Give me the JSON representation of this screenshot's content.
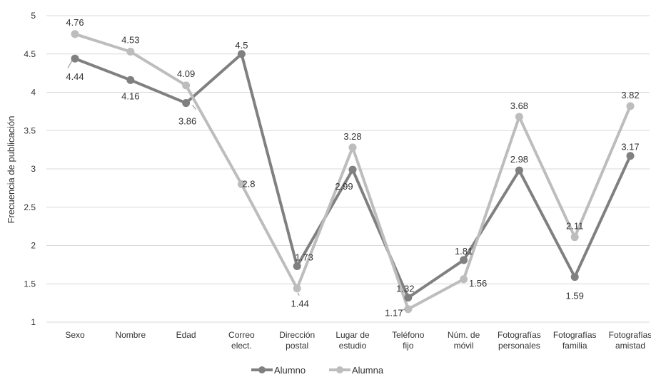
{
  "chart_data": {
    "type": "line",
    "title": "",
    "xlabel": "",
    "ylabel": "Frecuencia de publicación",
    "ylim": [
      1,
      5
    ],
    "yticks": [
      "1",
      "1.5",
      "2",
      "2.5",
      "3",
      "3.5",
      "4",
      "4.5",
      "5"
    ],
    "grid": true,
    "legend_position": "bottom",
    "categories": [
      [
        "Sexo"
      ],
      [
        "Nombre"
      ],
      [
        "Edad"
      ],
      [
        "Correo",
        "elect."
      ],
      [
        "Dirección",
        "postal"
      ],
      [
        "Lugar de",
        "estudio"
      ],
      [
        "Teléfono",
        "fijo"
      ],
      [
        "Núm. de",
        "móvil"
      ],
      [
        "Fotografías",
        "personales"
      ],
      [
        "Fotografías",
        "familia"
      ],
      [
        "Fotografías",
        "amistad"
      ]
    ],
    "series": [
      {
        "name": "Alumno",
        "color": "#808080",
        "values": [
          4.44,
          4.16,
          3.86,
          4.5,
          1.73,
          2.99,
          1.32,
          1.81,
          2.98,
          1.59,
          3.17
        ],
        "labels": [
          "4.44",
          "4.16",
          "3.86",
          "4.5",
          "1.73",
          "2.99",
          "1.32",
          "1.81",
          "2.98",
          "1.59",
          "3.17"
        ]
      },
      {
        "name": "Alumna",
        "color": "#bdbdbd",
        "values": [
          4.76,
          4.53,
          4.09,
          2.8,
          1.44,
          3.28,
          1.17,
          1.56,
          3.68,
          2.11,
          3.82
        ],
        "labels": [
          "4.76",
          "4.53",
          "4.09",
          "2.8",
          "1.44",
          "3.28",
          "1.17",
          "1.56",
          "3.68",
          "2.11",
          "3.82"
        ]
      }
    ]
  }
}
